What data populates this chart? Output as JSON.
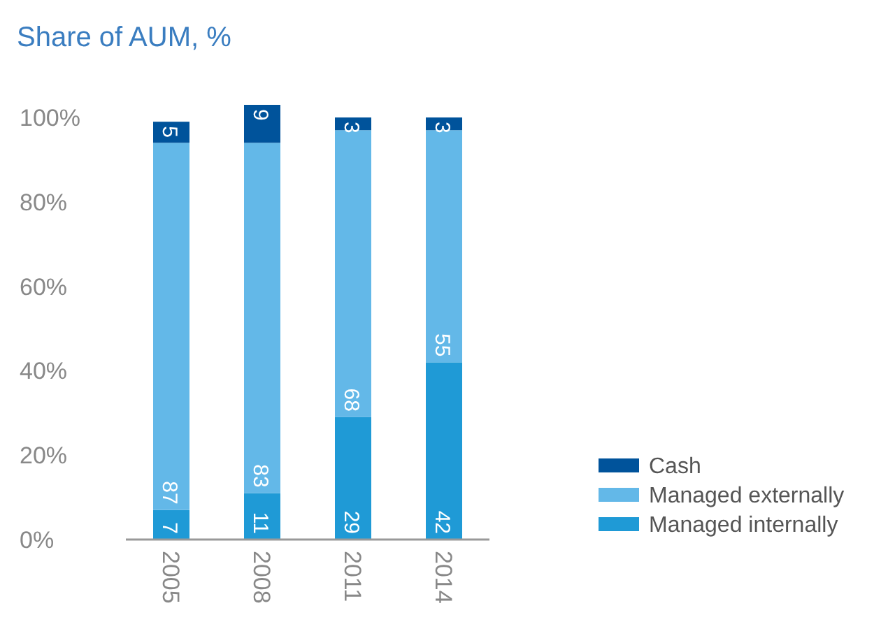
{
  "chart_data": {
    "type": "bar",
    "title": "Share of AUM, %",
    "categories": [
      "2005",
      "2008",
      "2011",
      "2014"
    ],
    "stacked": true,
    "data_labels": true,
    "legend": "bottom right",
    "grid": false,
    "ylim": [
      0,
      103
    ],
    "yticks": [
      {
        "value": 0,
        "label": "0%"
      },
      {
        "value": 20,
        "label": "20%"
      },
      {
        "value": 40,
        "label": "40%"
      },
      {
        "value": 60,
        "label": "60%"
      },
      {
        "value": 80,
        "label": "80%"
      },
      {
        "value": 100,
        "label": "100%"
      }
    ],
    "series": [
      {
        "name": "Managed internally",
        "color": "#1f9ad6",
        "values": [
          7,
          11,
          29,
          42
        ]
      },
      {
        "name": "Managed externally",
        "color": "#63b8e8",
        "values": [
          87,
          83,
          68,
          55
        ]
      },
      {
        "name": "Cash",
        "color": "#00539b",
        "values": [
          5,
          9,
          3,
          3
        ]
      }
    ]
  }
}
